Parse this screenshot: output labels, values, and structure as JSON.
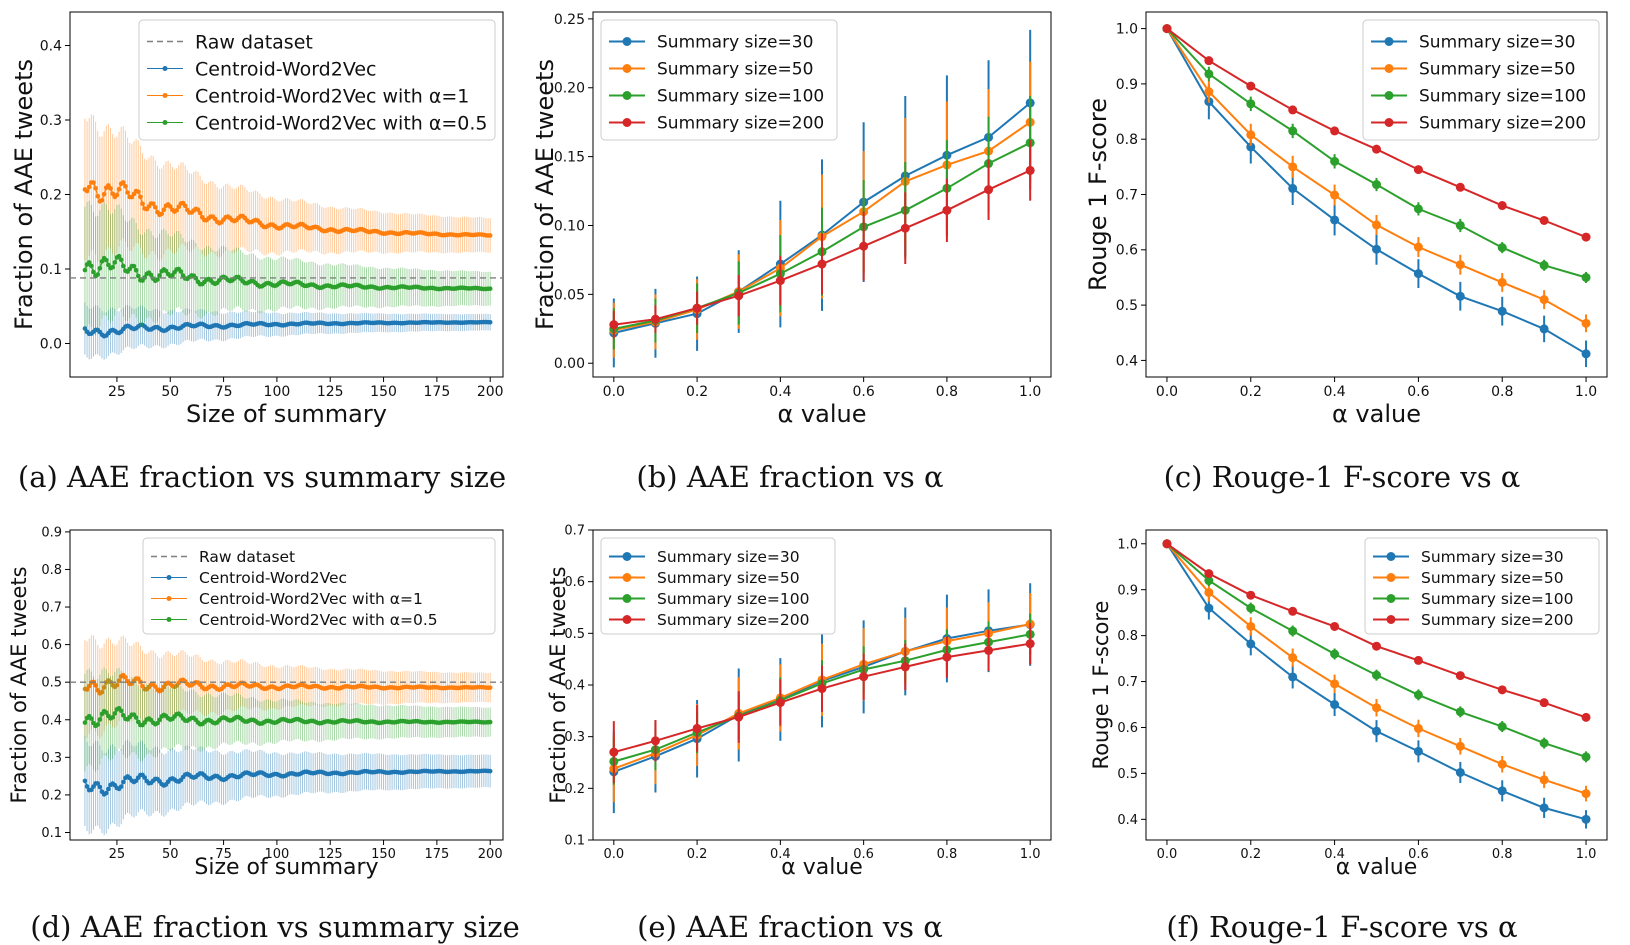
{
  "colors": {
    "blue": "#1f77b4",
    "orange": "#ff7f0e",
    "green": "#2ca02c",
    "red": "#d62728",
    "raw": "#7f7f7f"
  },
  "chart_data": [
    {
      "panel": "a",
      "type": "line",
      "caption": "(a) AAE fraction vs summary size",
      "xlabel": "Size of summary",
      "ylabel": "Fraction of AAE tweets",
      "xlim": [
        3,
        206
      ],
      "ylim": [
        -0.045,
        0.445
      ],
      "xticks": [
        25,
        50,
        75,
        100,
        125,
        150,
        175,
        200
      ],
      "xtick_labels": [
        "25",
        "50",
        "75",
        "100",
        "125",
        "150",
        "175",
        "200"
      ],
      "yticks": [
        0.0,
        0.1,
        0.2,
        0.3,
        0.4
      ],
      "ytick_labels": [
        "0.0",
        "0.1",
        "0.2",
        "0.3",
        "0.4"
      ],
      "legend": [
        "Raw dataset",
        "Centroid-Word2Vec",
        "Centroid-Word2Vec with α=1",
        "Centroid-Word2Vec with α=0.5"
      ],
      "legend_position": "top-right",
      "raw_dataset": 0.088,
      "x_start": 10,
      "x_end": 200,
      "series": [
        {
          "name": "Centroid-Word2Vec",
          "color": "blue",
          "start": 0.015,
          "end": 0.029,
          "err_start": 0.035,
          "err_end": 0.01
        },
        {
          "name": "Centroid-Word2Vec with α=1",
          "color": "orange",
          "start": 0.22,
          "end": 0.142,
          "err_start": 0.095,
          "err_end": 0.02
        },
        {
          "name": "Centroid-Word2Vec with α=0.5",
          "color": "green",
          "start": 0.11,
          "end": 0.072,
          "err_start": 0.085,
          "err_end": 0.02
        }
      ]
    },
    {
      "panel": "b",
      "type": "line",
      "caption": "(b) AAE fraction vs α",
      "xlabel": "α value",
      "ylabel": "Fraction of AAE tweets",
      "xlim": [
        -0.05,
        1.05
      ],
      "ylim": [
        -0.01,
        0.255
      ],
      "xticks": [
        0,
        0.2,
        0.4,
        0.6,
        0.8,
        1.0
      ],
      "xtick_labels": [
        "0.0",
        "0.2",
        "0.4",
        "0.6",
        "0.8",
        "1.0"
      ],
      "yticks": [
        0,
        0.05,
        0.1,
        0.15,
        0.2,
        0.25
      ],
      "ytick_labels": [
        "0.00",
        "0.05",
        "0.10",
        "0.15",
        "0.20",
        "0.25"
      ],
      "legend": [
        "Summary size=30",
        "Summary size=50",
        "Summary size=100",
        "Summary size=200"
      ],
      "legend_position": "top-left",
      "x": [
        0,
        0.1,
        0.2,
        0.3,
        0.4,
        0.5,
        0.6,
        0.7,
        0.8,
        0.9,
        1.0
      ],
      "series": [
        {
          "name": "Summary size=30",
          "color": "blue",
          "values": [
            0.022,
            0.029,
            0.036,
            0.052,
            0.072,
            0.093,
            0.117,
            0.136,
            0.151,
            0.164,
            0.189
          ],
          "errors": [
            0.025,
            0.025,
            0.027,
            0.03,
            0.046,
            0.055,
            0.058,
            0.058,
            0.058,
            0.056,
            0.053
          ]
        },
        {
          "name": "Summary size=50",
          "color": "orange",
          "values": [
            0.024,
            0.03,
            0.039,
            0.052,
            0.069,
            0.092,
            0.11,
            0.132,
            0.144,
            0.154,
            0.175
          ],
          "errors": [
            0.02,
            0.02,
            0.022,
            0.027,
            0.035,
            0.045,
            0.044,
            0.046,
            0.046,
            0.045,
            0.044
          ]
        },
        {
          "name": "Summary size=100",
          "color": "green",
          "values": [
            0.025,
            0.031,
            0.04,
            0.051,
            0.065,
            0.081,
            0.099,
            0.111,
            0.127,
            0.145,
            0.16
          ],
          "errors": [
            0.015,
            0.016,
            0.018,
            0.023,
            0.028,
            0.032,
            0.034,
            0.035,
            0.035,
            0.034,
            0.034
          ]
        },
        {
          "name": "Summary size=200",
          "color": "red",
          "values": [
            0.028,
            0.032,
            0.04,
            0.049,
            0.06,
            0.072,
            0.085,
            0.098,
            0.111,
            0.126,
            0.14
          ],
          "errors": [
            0.01,
            0.01,
            0.012,
            0.015,
            0.018,
            0.022,
            0.025,
            0.026,
            0.023,
            0.022,
            0.022
          ]
        }
      ]
    },
    {
      "panel": "c",
      "type": "line",
      "caption": "(c) Rouge-1 F-score vs α",
      "xlabel": "α value",
      "ylabel": "Rouge 1 F-score",
      "xlim": [
        -0.05,
        1.05
      ],
      "ylim": [
        0.37,
        1.03
      ],
      "xticks": [
        0,
        0.2,
        0.4,
        0.6,
        0.8,
        1.0
      ],
      "xtick_labels": [
        "0.0",
        "0.2",
        "0.4",
        "0.6",
        "0.8",
        "1.0"
      ],
      "yticks": [
        0.4,
        0.5,
        0.6,
        0.7,
        0.8,
        0.9,
        1.0
      ],
      "ytick_labels": [
        "0.4",
        "0.5",
        "0.6",
        "0.7",
        "0.8",
        "0.9",
        "1.0"
      ],
      "legend": [
        "Summary size=30",
        "Summary size=50",
        "Summary size=100",
        "Summary size=200"
      ],
      "legend_position": "top-right",
      "x": [
        0,
        0.1,
        0.2,
        0.3,
        0.4,
        0.5,
        0.6,
        0.7,
        0.8,
        0.9,
        1.0
      ],
      "series": [
        {
          "name": "Summary size=30",
          "color": "blue",
          "values": [
            1.0,
            0.868,
            0.786,
            0.711,
            0.654,
            0.601,
            0.557,
            0.516,
            0.489,
            0.457,
            0.412
          ],
          "errors": [
            0.003,
            0.032,
            0.03,
            0.03,
            0.028,
            0.028,
            0.026,
            0.026,
            0.026,
            0.024,
            0.024
          ]
        },
        {
          "name": "Summary size=50",
          "color": "orange",
          "values": [
            1.0,
            0.886,
            0.808,
            0.75,
            0.699,
            0.645,
            0.605,
            0.573,
            0.541,
            0.51,
            0.467
          ],
          "errors": [
            0.003,
            0.02,
            0.02,
            0.02,
            0.019,
            0.018,
            0.018,
            0.018,
            0.017,
            0.017,
            0.016
          ]
        },
        {
          "name": "Summary size=100",
          "color": "green",
          "values": [
            1.0,
            0.918,
            0.864,
            0.815,
            0.76,
            0.718,
            0.674,
            0.644,
            0.604,
            0.572,
            0.55
          ],
          "errors": [
            0.003,
            0.013,
            0.013,
            0.013,
            0.013,
            0.012,
            0.012,
            0.012,
            0.01,
            0.01,
            0.01
          ]
        },
        {
          "name": "Summary size=200",
          "color": "red",
          "values": [
            1.0,
            0.942,
            0.896,
            0.853,
            0.815,
            0.782,
            0.745,
            0.713,
            0.68,
            0.653,
            0.623
          ],
          "errors": [
            0.003,
            0.007,
            0.007,
            0.007,
            0.007,
            0.007,
            0.007,
            0.007,
            0.006,
            0.006,
            0.006
          ]
        }
      ]
    },
    {
      "panel": "d",
      "type": "line",
      "caption": "(d) AAE fraction vs summary size",
      "xlabel": "Size of summary",
      "ylabel": "Fraction of AAE tweets",
      "xlim": [
        3,
        206
      ],
      "ylim": [
        0.08,
        0.905
      ],
      "xticks": [
        25,
        50,
        75,
        100,
        125,
        150,
        175,
        200
      ],
      "xtick_labels": [
        "25",
        "50",
        "75",
        "100",
        "125",
        "150",
        "175",
        "200"
      ],
      "yticks": [
        0.1,
        0.2,
        0.3,
        0.4,
        0.5,
        0.6,
        0.7,
        0.8,
        0.9
      ],
      "ytick_labels": [
        "0.1",
        "0.2",
        "0.3",
        "0.4",
        "0.5",
        "0.6",
        "0.7",
        "0.8",
        "0.9"
      ],
      "legend": [
        "Raw dataset",
        "Centroid-Word2Vec",
        "Centroid-Word2Vec with α=1",
        "Centroid-Word2Vec with α=0.5"
      ],
      "legend_position": "top-right",
      "raw_dataset": 0.5,
      "x_start": 10,
      "x_end": 200,
      "series": [
        {
          "name": "Centroid-Word2Vec",
          "color": "blue",
          "start": 0.22,
          "end": 0.265,
          "err_start": 0.12,
          "err_end": 0.04
        },
        {
          "name": "Centroid-Word2Vec with α=1",
          "color": "orange",
          "start": 0.5,
          "end": 0.485,
          "err_start": 0.13,
          "err_end": 0.035
        },
        {
          "name": "Centroid-Word2Vec with α=0.5",
          "color": "green",
          "start": 0.41,
          "end": 0.393,
          "err_start": 0.13,
          "err_end": 0.035
        }
      ]
    },
    {
      "panel": "e",
      "type": "line",
      "caption": "(e) AAE fraction vs α",
      "xlabel": "α value",
      "ylabel": "Fraction of AAE tweets",
      "xlim": [
        -0.05,
        1.05
      ],
      "ylim": [
        0.1,
        0.7
      ],
      "xticks": [
        0,
        0.2,
        0.4,
        0.6,
        0.8,
        1.0
      ],
      "xtick_labels": [
        "0.0",
        "0.2",
        "0.4",
        "0.6",
        "0.8",
        "1.0"
      ],
      "yticks": [
        0.1,
        0.2,
        0.3,
        0.4,
        0.5,
        0.6,
        0.7
      ],
      "ytick_labels": [
        "0.1",
        "0.2",
        "0.3",
        "0.4",
        "0.5",
        "0.6",
        "0.7"
      ],
      "legend": [
        "Summary size=30",
        "Summary size=50",
        "Summary size=100",
        "Summary size=200"
      ],
      "legend_position": "top-left",
      "x": [
        0,
        0.1,
        0.2,
        0.3,
        0.4,
        0.5,
        0.6,
        0.7,
        0.8,
        0.9,
        1.0
      ],
      "series": [
        {
          "name": "Summary size=30",
          "color": "blue",
          "values": [
            0.232,
            0.262,
            0.296,
            0.342,
            0.372,
            0.408,
            0.435,
            0.465,
            0.49,
            0.505,
            0.517
          ],
          "errors": [
            0.08,
            0.07,
            0.075,
            0.09,
            0.08,
            0.09,
            0.09,
            0.085,
            0.085,
            0.08,
            0.08
          ]
        },
        {
          "name": "Summary size=50",
          "color": "orange",
          "values": [
            0.238,
            0.268,
            0.303,
            0.345,
            0.375,
            0.41,
            0.44,
            0.465,
            0.485,
            0.5,
            0.518
          ],
          "errors": [
            0.065,
            0.06,
            0.06,
            0.07,
            0.065,
            0.07,
            0.07,
            0.065,
            0.065,
            0.06,
            0.06
          ]
        },
        {
          "name": "Summary size=100",
          "color": "green",
          "values": [
            0.252,
            0.275,
            0.308,
            0.34,
            0.37,
            0.403,
            0.43,
            0.447,
            0.468,
            0.483,
            0.498
          ],
          "errors": [
            0.045,
            0.04,
            0.04,
            0.045,
            0.045,
            0.045,
            0.045,
            0.04,
            0.04,
            0.04,
            0.04
          ]
        },
        {
          "name": "Summary size=200",
          "color": "red",
          "values": [
            0.27,
            0.292,
            0.316,
            0.338,
            0.366,
            0.393,
            0.416,
            0.435,
            0.454,
            0.467,
            0.48
          ],
          "errors": [
            0.06,
            0.04,
            0.045,
            0.05,
            0.045,
            0.045,
            0.045,
            0.045,
            0.04,
            0.04,
            0.04
          ]
        }
      ]
    },
    {
      "panel": "f",
      "type": "line",
      "caption": "(f) Rouge-1 F-score vs α",
      "xlabel": "α value",
      "ylabel": "Rouge 1 F-score",
      "xlim": [
        -0.05,
        1.05
      ],
      "ylim": [
        0.355,
        1.03
      ],
      "xticks": [
        0,
        0.2,
        0.4,
        0.6,
        0.8,
        1.0
      ],
      "xtick_labels": [
        "0.0",
        "0.2",
        "0.4",
        "0.6",
        "0.8",
        "1.0"
      ],
      "yticks": [
        0.4,
        0.5,
        0.6,
        0.7,
        0.8,
        0.9,
        1.0
      ],
      "ytick_labels": [
        "0.4",
        "0.5",
        "0.6",
        "0.7",
        "0.8",
        "0.9",
        "1.0"
      ],
      "legend": [
        "Summary size=30",
        "Summary size=50",
        "Summary size=100",
        "Summary size=200"
      ],
      "legend_position": "top-right",
      "x": [
        0,
        0.1,
        0.2,
        0.3,
        0.4,
        0.5,
        0.6,
        0.7,
        0.8,
        0.9,
        1.0
      ],
      "series": [
        {
          "name": "Summary size=30",
          "color": "blue",
          "values": [
            1.0,
            0.86,
            0.782,
            0.71,
            0.65,
            0.592,
            0.548,
            0.502,
            0.462,
            0.425,
            0.4
          ],
          "errors": [
            0.003,
            0.025,
            0.025,
            0.025,
            0.025,
            0.024,
            0.024,
            0.023,
            0.023,
            0.022,
            0.02
          ]
        },
        {
          "name": "Summary size=50",
          "color": "orange",
          "values": [
            1.0,
            0.894,
            0.82,
            0.752,
            0.695,
            0.643,
            0.598,
            0.559,
            0.52,
            0.486,
            0.456
          ],
          "errors": [
            0.003,
            0.02,
            0.02,
            0.02,
            0.02,
            0.019,
            0.019,
            0.018,
            0.018,
            0.018,
            0.017
          ]
        },
        {
          "name": "Summary size=100",
          "color": "green",
          "values": [
            1.0,
            0.92,
            0.86,
            0.81,
            0.76,
            0.714,
            0.671,
            0.634,
            0.602,
            0.566,
            0.536
          ],
          "errors": [
            0.003,
            0.012,
            0.012,
            0.012,
            0.012,
            0.012,
            0.012,
            0.012,
            0.012,
            0.012,
            0.012
          ]
        },
        {
          "name": "Summary size=200",
          "color": "red",
          "values": [
            1.0,
            0.935,
            0.888,
            0.853,
            0.82,
            0.777,
            0.746,
            0.713,
            0.682,
            0.654,
            0.622
          ],
          "errors": [
            0.003,
            0.005,
            0.005,
            0.005,
            0.005,
            0.005,
            0.005,
            0.005,
            0.005,
            0.005,
            0.005
          ]
        }
      ]
    }
  ]
}
